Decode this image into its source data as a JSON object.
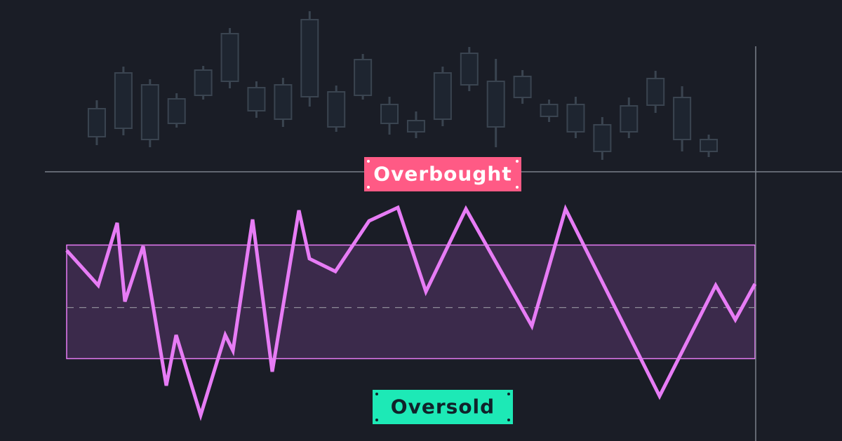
{
  "chart_data": [
    {
      "type": "candlestick",
      "x": [
        0,
        1,
        2,
        3,
        4,
        5,
        6,
        7,
        8,
        9,
        10,
        11,
        12,
        13,
        14,
        15,
        16,
        17,
        18,
        19,
        20,
        21,
        22,
        23
      ],
      "xlim": [
        -0.5,
        23.5
      ],
      "ylim": [
        0,
        250
      ],
      "color": "#3a4450",
      "open": [
        55,
        67,
        51,
        74,
        114,
        134,
        92,
        80,
        112,
        69,
        114,
        74,
        62,
        80,
        129,
        69,
        111,
        84,
        62,
        34,
        62,
        100,
        51,
        34
      ],
      "close": [
        95,
        146,
        129,
        109,
        150,
        202,
        125,
        129,
        222,
        119,
        165,
        101,
        78,
        146,
        174,
        134,
        141,
        101,
        101,
        72,
        99,
        138,
        111,
        51
      ],
      "high": [
        107,
        155,
        137,
        117,
        156,
        210,
        134,
        139,
        234,
        128,
        173,
        112,
        91,
        155,
        183,
        166,
        150,
        108,
        112,
        83,
        111,
        149,
        127,
        58
      ],
      "low": [
        43,
        57,
        40,
        68,
        108,
        124,
        82,
        69,
        98,
        62,
        108,
        58,
        53,
        70,
        120,
        40,
        102,
        76,
        53,
        22,
        53,
        89,
        34,
        26
      ]
    },
    {
      "type": "line",
      "x": [
        0,
        4.5,
        7.2,
        8.3,
        10.9,
        14.2,
        15.6,
        19.1,
        22.6,
        23.7,
        26.5,
        29.3,
        33.1,
        34.6,
        38.3,
        43.1,
        47.2,
        51.2,
        56.9,
        66.3,
        71.1,
        84.5,
        92.5,
        95.3,
        98.1
      ],
      "xlim": [
        0,
        98.1
      ],
      "ylim": [
        0,
        100
      ],
      "color": "#e77cf5",
      "band": [
        30,
        70
      ],
      "band_color": "#3b2a4b",
      "midline": 48,
      "values": [
        68.1,
        55.8,
        77.8,
        50.1,
        69.6,
        20.5,
        38.3,
        10.1,
        38.3,
        32.8,
        79.0,
        25.4,
        82.2,
        65.2,
        60.7,
        78.5,
        83.2,
        53.6,
        82.7,
        41.5,
        82.7,
        16.8,
        55.8,
        43.7,
        56.3
      ],
      "annotations": [
        {
          "text": "Overbought",
          "color": "#ff5a85"
        },
        {
          "text": "Oversold",
          "color": "#1de9b6"
        }
      ]
    }
  ]
}
